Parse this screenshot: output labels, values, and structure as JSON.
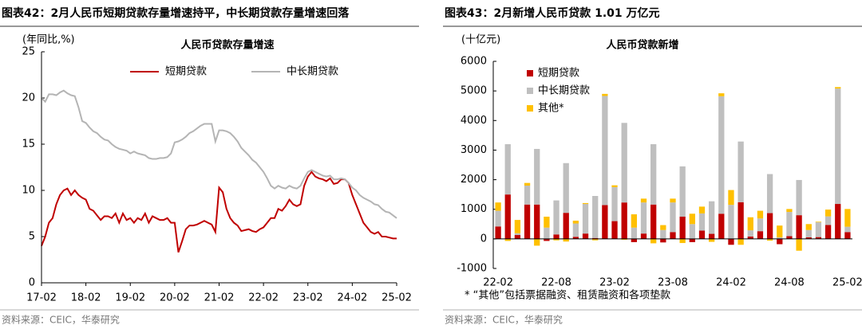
{
  "chart_data": [
    {
      "type": "line",
      "figure_title": "图表42：2月人民币短期贷款存量增速持平，中长期贷款存量增速回落",
      "title": "人民币贷款存量增速",
      "y_unit_label": "(年同比,%)",
      "source": "资料来源：CEIC，华泰研究",
      "categories": [
        "17-02",
        null,
        null,
        null,
        null,
        null,
        null,
        null,
        null,
        null,
        null,
        null,
        "18-02",
        null,
        null,
        null,
        null,
        null,
        null,
        null,
        null,
        null,
        null,
        null,
        "19-02",
        null,
        null,
        null,
        null,
        null,
        null,
        null,
        null,
        null,
        null,
        null,
        "20-02",
        null,
        null,
        null,
        null,
        null,
        null,
        null,
        null,
        null,
        null,
        null,
        "21-02",
        null,
        null,
        null,
        null,
        null,
        null,
        null,
        null,
        null,
        null,
        null,
        "22-02",
        null,
        null,
        null,
        null,
        null,
        null,
        null,
        null,
        null,
        null,
        null,
        "23-02",
        null,
        null,
        null,
        null,
        null,
        null,
        null,
        null,
        null,
        null,
        null,
        "24-02",
        null,
        null,
        null,
        null,
        null,
        null,
        null,
        null,
        null,
        null,
        null,
        "25-02"
      ],
      "series": [
        {
          "name": "短期贷款",
          "color": "#c00000",
          "values": [
            4,
            5,
            6.5,
            7,
            8.5,
            9.5,
            10,
            10.2,
            9.5,
            10,
            9.5,
            9.2,
            9,
            8,
            7.8,
            7.3,
            6.8,
            7.2,
            7.2,
            7,
            7.5,
            6.5,
            7.5,
            6.8,
            7,
            6.5,
            7,
            6.8,
            7.5,
            6.5,
            7.2,
            7,
            6.8,
            6.8,
            7,
            6.5,
            6.5,
            3.3,
            4.5,
            5.8,
            6.2,
            6.2,
            6.3,
            6.5,
            6.7,
            6.5,
            6.3,
            5.5,
            10.3,
            9.8,
            8,
            7,
            6.5,
            6.2,
            5.6,
            5.7,
            5.8,
            5.6,
            5.5,
            5.8,
            6,
            6.5,
            7,
            7,
            8,
            7.8,
            8.3,
            9,
            8.5,
            8.3,
            8.5,
            10.5,
            11.5,
            12,
            11.5,
            11.3,
            11.2,
            11,
            11.3,
            10.7,
            10.8,
            11.2,
            11.2,
            10.8,
            9.5,
            8.5,
            7.5,
            6.5,
            6,
            5.5,
            5.3,
            5.5,
            5,
            5,
            4.9,
            4.8,
            4.8
          ]
        },
        {
          "name": "中长期贷款",
          "color": "#b4b4b4",
          "values": [
            20,
            19.6,
            20.4,
            20.4,
            20.3,
            20.6,
            20.8,
            20.5,
            20.3,
            20.2,
            19,
            17.5,
            17.3,
            16.8,
            16.4,
            16.2,
            15.8,
            15.5,
            15.4,
            15,
            14.7,
            14.5,
            14.4,
            14.3,
            14,
            14.2,
            14,
            13.9,
            13.8,
            13.5,
            13.4,
            13.4,
            13.5,
            13.5,
            13.6,
            14,
            15.2,
            15.3,
            15.5,
            15.8,
            16.2,
            16.4,
            16.7,
            17,
            17.2,
            17.2,
            17.2,
            15.3,
            16.5,
            16.5,
            16.4,
            16.2,
            15.8,
            15.3,
            14.6,
            14.2,
            13.8,
            13.3,
            13,
            12.5,
            12,
            11.3,
            10.5,
            10.2,
            10.5,
            10.3,
            10.2,
            10.5,
            10.3,
            10.2,
            10.5,
            11.3,
            12,
            12.2,
            12,
            11.8,
            11.6,
            11.5,
            11.6,
            11.2,
            11.2,
            11.3,
            11.2,
            10.8,
            10.3,
            10,
            9.5,
            9.2,
            9,
            8.8,
            8.5,
            8.4,
            8,
            7.7,
            7.6,
            7.3,
            7
          ]
        }
      ],
      "ylim": [
        0,
        25
      ],
      "yticks": [
        0,
        5,
        10,
        15,
        20,
        25
      ],
      "legend": "top"
    },
    {
      "type": "bar",
      "stacked": true,
      "figure_title": "图表43：2月新增人民币贷款 1.01 万亿元",
      "title": "人民币贷款新增",
      "y_unit_label": "(十亿元)",
      "note": "* “其他”包括票据融资、租赁融资和各项垫款",
      "source": "资料来源：CEIC，华泰研究",
      "categories": [
        "22-02",
        null,
        null,
        null,
        null,
        null,
        "22-08",
        null,
        null,
        null,
        null,
        null,
        "23-02",
        null,
        null,
        null,
        null,
        null,
        "23-08",
        null,
        null,
        null,
        null,
        null,
        "24-02",
        null,
        null,
        null,
        null,
        null,
        "24-08",
        null,
        null,
        null,
        null,
        null,
        "25-02"
      ],
      "series": [
        {
          "name": "短期贷款",
          "color": "#c00000",
          "values": [
            420,
            1500,
            130,
            1160,
            1160,
            -70,
            150,
            880,
            70,
            180,
            30,
            1140,
            600,
            1230,
            -110,
            180,
            1160,
            -120,
            230,
            750,
            -110,
            280,
            170,
            850,
            -200,
            1240,
            80,
            260,
            870,
            -180,
            90,
            800,
            50,
            60,
            470,
            1180,
            230
          ]
        },
        {
          "name": "中长期贷款",
          "color": "#bfbfbf",
          "values": [
            530,
            1700,
            60,
            640,
            1880,
            380,
            1150,
            1680,
            450,
            1000,
            1420,
            3690,
            1150,
            2690,
            380,
            1050,
            2040,
            300,
            1000,
            1700,
            500,
            580,
            1100,
            3970,
            1150,
            2050,
            210,
            430,
            1320,
            50,
            820,
            1190,
            250,
            500,
            290,
            3900,
            180
          ]
        },
        {
          "name": "其他*",
          "color": "#ffc000",
          "values": [
            280,
            -70,
            450,
            90,
            -230,
            370,
            -50,
            -90,
            95,
            30,
            -50,
            70,
            60,
            -30,
            450,
            130,
            -150,
            165,
            130,
            -140,
            350,
            230,
            -100,
            100,
            500,
            -200,
            440,
            260,
            -60,
            400,
            100,
            -400,
            200,
            20,
            230,
            50,
            600
          ]
        }
      ],
      "ylim": [
        -1000,
        6000
      ],
      "yticks": [
        -1000,
        0,
        1000,
        2000,
        3000,
        4000,
        5000,
        6000
      ],
      "legend": "top-left"
    }
  ]
}
